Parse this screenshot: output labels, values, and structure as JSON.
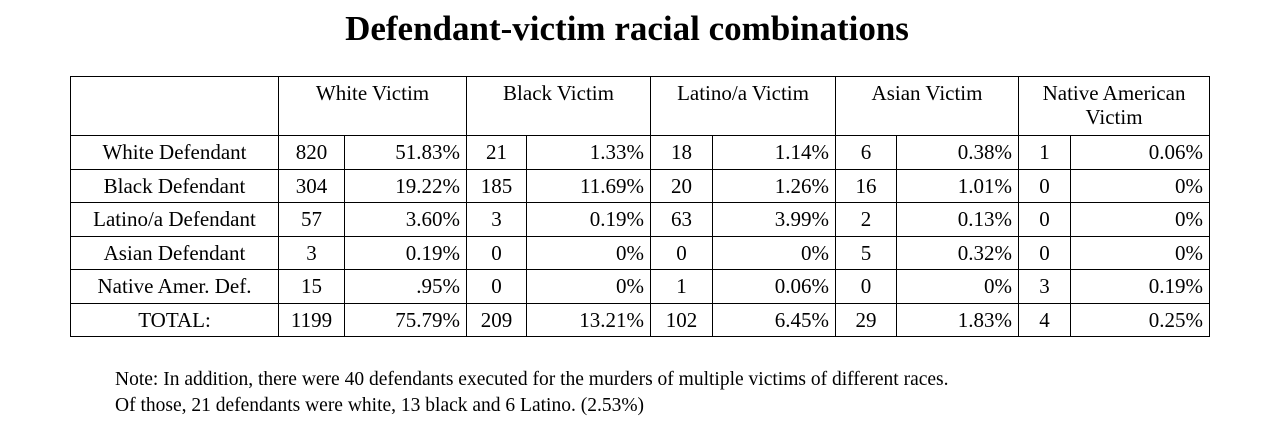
{
  "title": "Defendant-victim racial combinations",
  "table": {
    "corner": "",
    "columns": [
      "White Victim",
      "Black Victim",
      "Latino/a Victim",
      "Asian Victim",
      "Native American Victim"
    ],
    "rows": [
      {
        "label": "White Defendant",
        "cells": [
          [
            "820",
            "51.83%"
          ],
          [
            "21",
            "1.33%"
          ],
          [
            "18",
            "1.14%"
          ],
          [
            "6",
            "0.38%"
          ],
          [
            "1",
            "0.06%"
          ]
        ]
      },
      {
        "label": "Black Defendant",
        "cells": [
          [
            "304",
            "19.22%"
          ],
          [
            "185",
            "11.69%"
          ],
          [
            "20",
            "1.26%"
          ],
          [
            "16",
            "1.01%"
          ],
          [
            "0",
            "0%"
          ]
        ]
      },
      {
        "label": "Latino/a Defendant",
        "cells": [
          [
            "57",
            "3.60%"
          ],
          [
            "3",
            "0.19%"
          ],
          [
            "63",
            "3.99%"
          ],
          [
            "2",
            "0.13%"
          ],
          [
            "0",
            "0%"
          ]
        ]
      },
      {
        "label": "Asian Defendant",
        "cells": [
          [
            "3",
            "0.19%"
          ],
          [
            "0",
            "0%"
          ],
          [
            "0",
            "0%"
          ],
          [
            "5",
            "0.32%"
          ],
          [
            "0",
            "0%"
          ]
        ]
      },
      {
        "label": "Native Amer. Def.",
        "cells": [
          [
            "15",
            ".95%"
          ],
          [
            "0",
            "0%"
          ],
          [
            "1",
            "0.06%"
          ],
          [
            "0",
            "0%"
          ],
          [
            "3",
            "0.19%"
          ]
        ]
      },
      {
        "label": "TOTAL:",
        "cells": [
          [
            "1199",
            "75.79%"
          ],
          [
            "209",
            "13.21%"
          ],
          [
            "102",
            "6.45%"
          ],
          [
            "29",
            "1.83%"
          ],
          [
            "4",
            "0.25%"
          ]
        ]
      }
    ]
  },
  "note": {
    "line1": "Note: In addition, there were 40 defendants executed for the murders of multiple victims of different races.",
    "line2": "Of those, 21 defendants were white, 13 black and 6 Latino. (2.53%)"
  }
}
